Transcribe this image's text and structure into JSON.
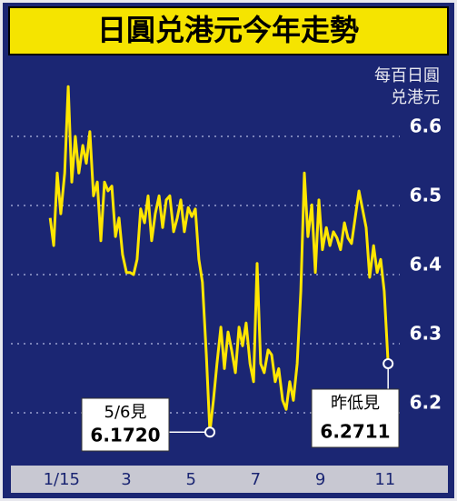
{
  "chart_data": {
    "type": "line",
    "title": "日圓兑港元今年走勢",
    "y_label_lines": [
      "每百日圓",
      "兑港元"
    ],
    "color": "#ffe600",
    "x": [
      0.42,
      0.53,
      0.64,
      0.75,
      0.87,
      0.98,
      1.09,
      1.2,
      1.31,
      1.43,
      1.54,
      1.65,
      1.76,
      1.88,
      1.99,
      2.1,
      2.21,
      2.33,
      2.44,
      2.55,
      2.66,
      2.78,
      2.89,
      3.0,
      3.11,
      3.22,
      3.34,
      3.45,
      3.56,
      3.67,
      3.79,
      3.9,
      4.01,
      4.12,
      4.24,
      4.35,
      4.46,
      4.57,
      4.69,
      4.8,
      4.91,
      5.02,
      5.13,
      5.25,
      5.36,
      5.47,
      5.58,
      5.7,
      5.81,
      5.92,
      6.03,
      6.15,
      6.26,
      6.37,
      6.48,
      6.6,
      6.71,
      6.82,
      6.93,
      7.04,
      7.16,
      7.27,
      7.38,
      7.49,
      7.61,
      7.72,
      7.83,
      7.94,
      8.06,
      8.17,
      8.28,
      8.39,
      8.51,
      8.62,
      8.73,
      8.84,
      8.96,
      9.07,
      9.18,
      9.29,
      9.4,
      9.52,
      9.63,
      9.74,
      9.85,
      9.97,
      10.08,
      10.19,
      10.3,
      10.42,
      10.53,
      10.64,
      10.75,
      10.87
    ],
    "values": [
      6.482,
      6.442,
      6.547,
      6.488,
      6.547,
      6.672,
      6.534,
      6.6,
      6.547,
      6.587,
      6.561,
      6.607,
      6.514,
      6.534,
      6.449,
      6.534,
      6.521,
      6.528,
      6.455,
      6.482,
      6.429,
      6.403,
      6.403,
      6.4,
      6.422,
      6.495,
      6.475,
      6.514,
      6.449,
      6.488,
      6.514,
      6.468,
      6.508,
      6.514,
      6.462,
      6.482,
      6.508,
      6.462,
      6.497,
      6.484,
      6.495,
      6.422,
      6.389,
      6.284,
      6.172,
      6.218,
      6.271,
      6.324,
      6.264,
      6.317,
      6.291,
      6.258,
      6.324,
      6.297,
      6.33,
      6.271,
      6.245,
      6.416,
      6.271,
      6.258,
      6.291,
      6.284,
      6.245,
      6.264,
      6.218,
      6.205,
      6.245,
      6.218,
      6.271,
      6.376,
      6.547,
      6.455,
      6.501,
      6.403,
      6.508,
      6.436,
      6.468,
      6.442,
      6.462,
      6.453,
      6.436,
      6.475,
      6.453,
      6.445,
      6.482,
      6.521,
      6.495,
      6.468,
      6.396,
      6.442,
      6.403,
      6.422,
      6.376,
      6.2711
    ],
    "xlim": [
      0,
      12
    ],
    "xticks": [
      {
        "value": 1,
        "label": "1/15"
      },
      3,
      5,
      7,
      9,
      11
    ],
    "ylim": [
      6.13,
      6.7
    ],
    "yticks": [
      6.2,
      6.3,
      6.4,
      6.5,
      6.6
    ],
    "grid": true,
    "annotations": [
      {
        "text": "5/6見",
        "value_label": "6.1720",
        "x": 5.36,
        "y": 6.172
      },
      {
        "text": "昨低見",
        "value_label": "6.2711",
        "x": 10.87,
        "y": 6.2711
      }
    ]
  }
}
